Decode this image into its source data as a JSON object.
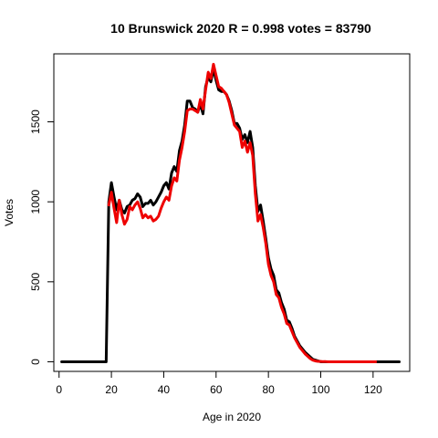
{
  "chart_data": {
    "type": "line",
    "title": "10 Brunswick 2020 R = 0.998 votes = 83790",
    "xlabel": "Age in 2020",
    "ylabel": "Votes",
    "xlim": [
      -2,
      134
    ],
    "ylim": [
      -60,
      1925
    ],
    "x_ticks": [
      0,
      20,
      40,
      60,
      80,
      100,
      120
    ],
    "y_ticks": [
      0,
      500,
      1000,
      1500
    ],
    "grid": false,
    "legend": "none",
    "series": [
      {
        "color": "#000000",
        "x": [
          1,
          18,
          19,
          20,
          21,
          22,
          23,
          24,
          25,
          26,
          27,
          28,
          29,
          30,
          31,
          32,
          33,
          34,
          35,
          36,
          37,
          38,
          39,
          40,
          41,
          42,
          43,
          44,
          45,
          46,
          47,
          48,
          49,
          50,
          51,
          52,
          53,
          54,
          55,
          56,
          57,
          58,
          59,
          60,
          61,
          62,
          63,
          64,
          65,
          66,
          67,
          68,
          69,
          70,
          71,
          72,
          73,
          74,
          75,
          76,
          77,
          78,
          79,
          80,
          81,
          82,
          83,
          84,
          85,
          86,
          87,
          88,
          89,
          90,
          91,
          92,
          93,
          94,
          95,
          96,
          97,
          98,
          99,
          100,
          101,
          102,
          103,
          104,
          105,
          106,
          107,
          108,
          109,
          110,
          111,
          112,
          113,
          114,
          115,
          116,
          117,
          118,
          119,
          120,
          121,
          122,
          123,
          124,
          125,
          126,
          127,
          128,
          129,
          130
        ],
        "y": [
          0,
          0,
          1000,
          1120,
          1030,
          950,
          1010,
          950,
          930,
          970,
          980,
          1010,
          1020,
          1050,
          1030,
          970,
          990,
          990,
          1010,
          980,
          1000,
          1030,
          1060,
          1100,
          1120,
          1080,
          1180,
          1220,
          1190,
          1320,
          1380,
          1480,
          1630,
          1630,
          1590,
          1580,
          1560,
          1610,
          1550,
          1720,
          1780,
          1750,
          1830,
          1760,
          1700,
          1690,
          1690,
          1670,
          1630,
          1570,
          1490,
          1490,
          1460,
          1390,
          1420,
          1370,
          1440,
          1340,
          1100,
          940,
          980,
          880,
          770,
          650,
          580,
          540,
          450,
          430,
          370,
          330,
          260,
          250,
          210,
          160,
          130,
          100,
          80,
          60,
          45,
          30,
          15,
          10,
          5,
          0,
          0,
          0,
          0,
          0,
          0,
          0,
          0,
          0,
          0,
          0,
          0,
          0,
          0,
          0,
          0,
          0,
          0,
          0,
          0,
          0,
          0,
          0,
          0,
          0,
          0,
          0,
          0,
          0,
          0,
          0
        ]
      },
      {
        "color": "#ee0000",
        "x": [
          19,
          20,
          21,
          22,
          23,
          24,
          25,
          26,
          27,
          28,
          29,
          30,
          31,
          32,
          33,
          34,
          35,
          36,
          37,
          38,
          39,
          40,
          41,
          42,
          43,
          44,
          45,
          46,
          47,
          48,
          49,
          50,
          51,
          52,
          53,
          54,
          55,
          56,
          57,
          58,
          59,
          60,
          61,
          62,
          63,
          64,
          65,
          66,
          67,
          68,
          69,
          70,
          71,
          72,
          73,
          74,
          75,
          76,
          77,
          78,
          79,
          80,
          81,
          82,
          83,
          84,
          85,
          86,
          87,
          88,
          89,
          90,
          91,
          92,
          93,
          94,
          95,
          96,
          97,
          98,
          99,
          100,
          101,
          102,
          103,
          104,
          105,
          106,
          107,
          108,
          109,
          110,
          111,
          112,
          113,
          114,
          115,
          116,
          117,
          118,
          119,
          120,
          121
        ],
        "y": [
          980,
          1060,
          960,
          870,
          1010,
          920,
          860,
          890,
          970,
          950,
          980,
          1000,
          960,
          900,
          920,
          900,
          910,
          880,
          890,
          910,
          960,
          1000,
          1030,
          1010,
          1100,
          1150,
          1130,
          1260,
          1340,
          1440,
          1570,
          1580,
          1580,
          1570,
          1560,
          1640,
          1580,
          1700,
          1810,
          1770,
          1860,
          1790,
          1720,
          1710,
          1690,
          1670,
          1620,
          1550,
          1480,
          1460,
          1440,
          1340,
          1380,
          1310,
          1370,
          1290,
          1050,
          880,
          920,
          840,
          740,
          610,
          540,
          500,
          420,
          400,
          340,
          300,
          240,
          230,
          190,
          150,
          120,
          90,
          70,
          50,
          35,
          20,
          10,
          5,
          3,
          2,
          1,
          1,
          0,
          0,
          0,
          0,
          0,
          0,
          0,
          0,
          0,
          0,
          0,
          0,
          0,
          0,
          0,
          0,
          0,
          0,
          0
        ]
      }
    ]
  }
}
